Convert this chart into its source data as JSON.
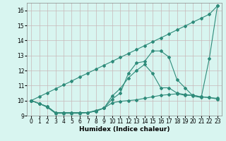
{
  "x": [
    0,
    1,
    2,
    3,
    4,
    5,
    6,
    7,
    8,
    9,
    10,
    11,
    12,
    13,
    14,
    15,
    16,
    17,
    18,
    19,
    20,
    21,
    22,
    23
  ],
  "line_straight": [
    10.0,
    10.26,
    10.52,
    10.78,
    11.04,
    11.3,
    11.57,
    11.83,
    12.09,
    12.35,
    12.61,
    12.87,
    13.13,
    13.39,
    13.65,
    13.91,
    14.17,
    14.43,
    14.7,
    14.96,
    15.22,
    15.48,
    15.74,
    16.3
  ],
  "line_spiky": [
    10.0,
    9.8,
    9.6,
    9.2,
    9.2,
    9.2,
    9.2,
    9.2,
    9.3,
    9.5,
    10.1,
    10.5,
    11.8,
    12.5,
    12.6,
    13.3,
    13.3,
    12.9,
    11.4,
    10.85,
    10.3,
    10.2,
    12.8,
    16.3
  ],
  "line_mid": [
    10.0,
    9.8,
    9.6,
    9.2,
    9.2,
    9.2,
    9.2,
    9.2,
    9.3,
    9.5,
    10.3,
    10.8,
    11.5,
    12.0,
    12.4,
    11.8,
    10.85,
    10.85,
    10.5,
    10.4,
    10.35,
    10.25,
    10.2,
    10.1
  ],
  "line_flat": [
    10.0,
    9.8,
    9.55,
    9.15,
    9.15,
    9.15,
    9.15,
    9.2,
    9.35,
    9.5,
    9.85,
    9.95,
    10.0,
    10.05,
    10.15,
    10.25,
    10.35,
    10.4,
    10.45,
    10.35,
    10.35,
    10.25,
    10.2,
    10.15
  ],
  "line_color": "#2e8b7a",
  "bg_color": "#d8f5f0",
  "grid_color": "#c8b8b8",
  "xlabel": "Humidex (Indice chaleur)",
  "xlim": [
    -0.5,
    23.5
  ],
  "ylim": [
    9.0,
    16.5
  ],
  "yticks": [
    9,
    10,
    11,
    12,
    13,
    14,
    15,
    16
  ],
  "xticks": [
    0,
    1,
    2,
    3,
    4,
    5,
    6,
    7,
    8,
    9,
    10,
    11,
    12,
    13,
    14,
    15,
    16,
    17,
    18,
    19,
    20,
    21,
    22,
    23
  ],
  "fontsize_axis": 6.5,
  "fontsize_ticks": 5.5,
  "marker": "D",
  "markersize": 2.0,
  "linewidth": 0.8
}
